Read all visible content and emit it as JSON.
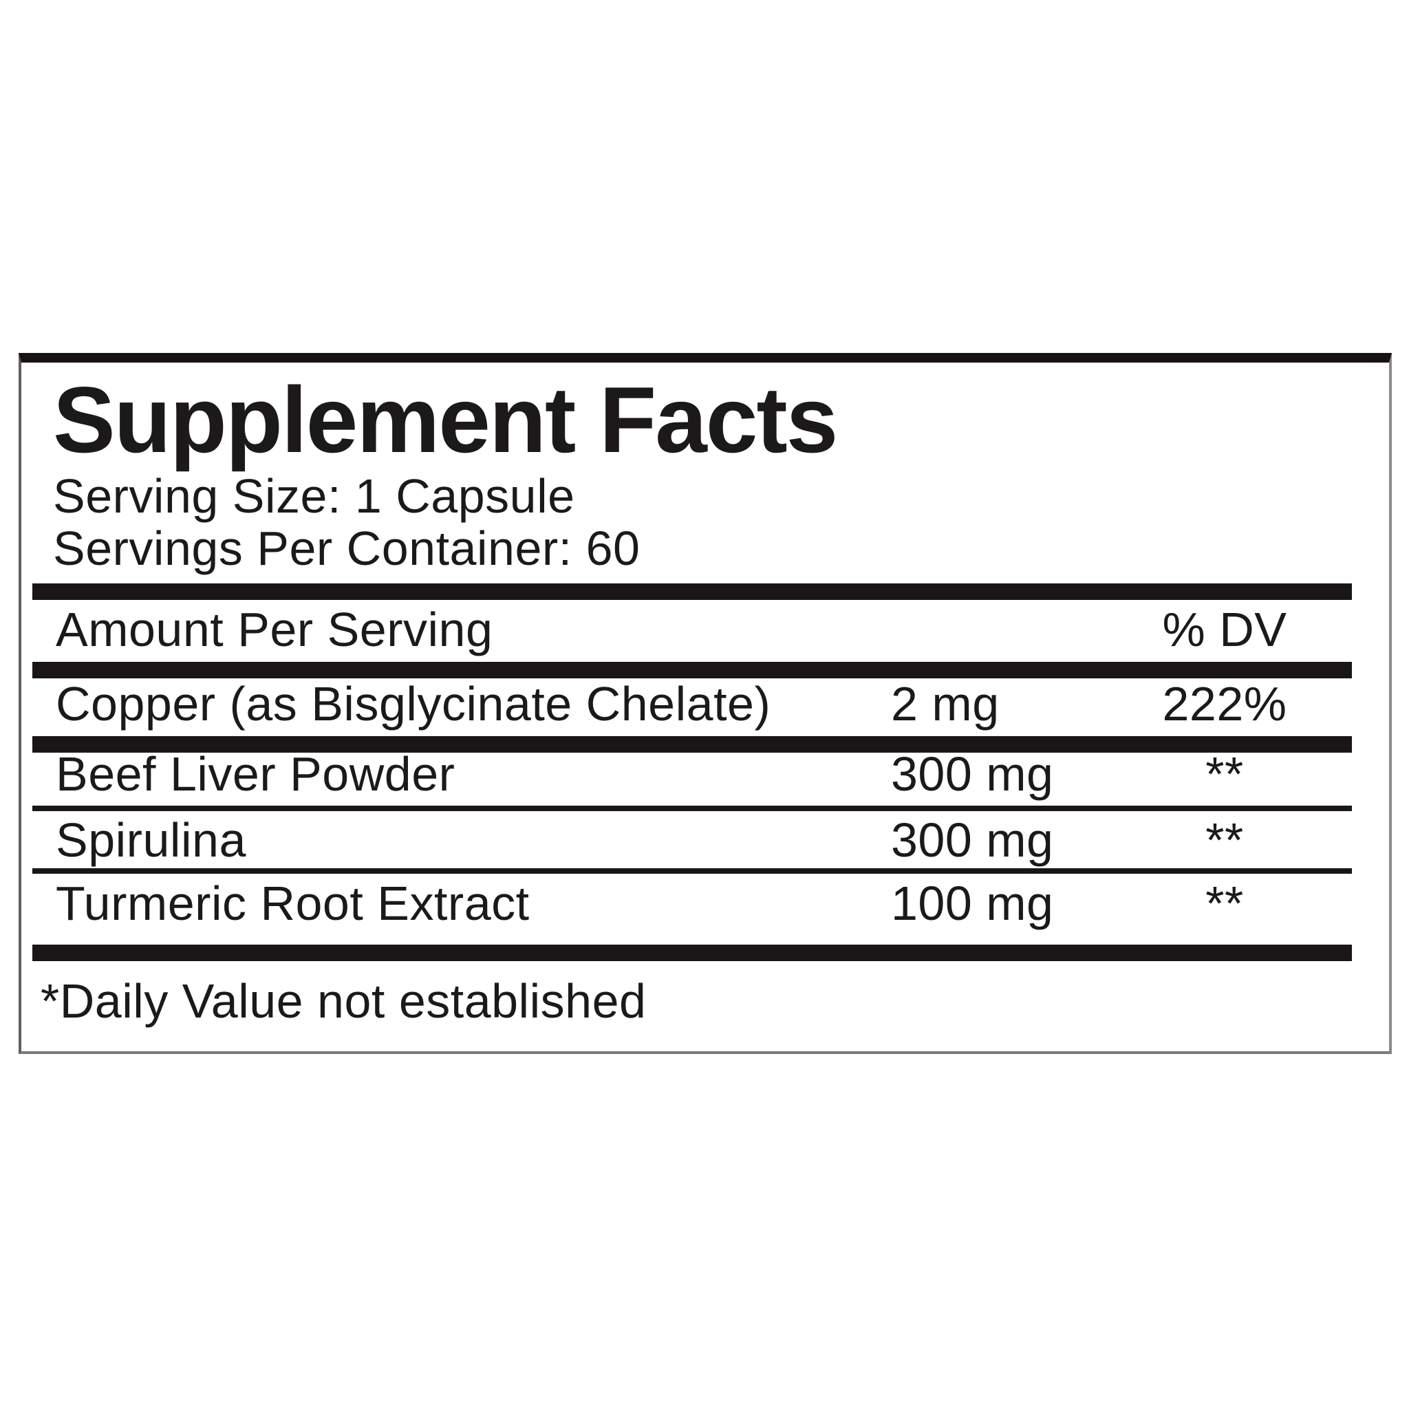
{
  "label": {
    "title": "Supplement Facts",
    "serving_size": "Serving Size: 1 Capsule",
    "servings_per_container": "Servings Per Container: 60",
    "header": {
      "amount_col": "Amount Per Serving",
      "dv_col": "% DV"
    },
    "rows": [
      {
        "name": "Copper (as Bisglycinate Chelate)",
        "amount": "2 mg",
        "dv": "222%"
      },
      {
        "name": "Beef Liver Powder",
        "amount": "300 mg",
        "dv": "**"
      },
      {
        "name": "Spirulina",
        "amount": "300 mg",
        "dv": "**"
      },
      {
        "name": "Turmeric Root Extract",
        "amount": "100 mg",
        "dv": "**"
      }
    ],
    "footnote": "*Daily Value not established",
    "colors": {
      "text": "#1c191a",
      "rule": "#1a1617",
      "border_top": "#181113",
      "border_side": "#7a7a7a"
    }
  }
}
